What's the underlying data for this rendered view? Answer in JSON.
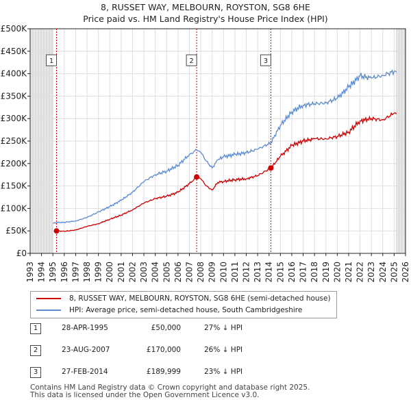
{
  "title_line1": "8, RUSSET WAY, MELBOURN, ROYSTON, SG8 6HE",
  "title_line2": "Price paid vs. HM Land Registry's House Price Index (HPI)",
  "legend": {
    "property_label": "8, RUSSET WAY, MELBOURN, ROYSTON, SG8 6HE (semi-detached house)",
    "hpi_label": "HPI: Average price, semi-detached house, South Cambridgeshire"
  },
  "colors": {
    "property": "#cc0000",
    "hpi": "#5b8bd0",
    "marker_line": "#cc0000",
    "axis": "#222222",
    "grid": "#dddddd",
    "shade": "#e6e6e6"
  },
  "sales": [
    {
      "num": "1",
      "date": "28-APR-1995",
      "price": "£50,000",
      "hpi_diff": "27% ↓ HPI"
    },
    {
      "num": "2",
      "date": "23-AUG-2007",
      "price": "£170,000",
      "hpi_diff": "26% ↓ HPI"
    },
    {
      "num": "3",
      "date": "27-FEB-2014",
      "price": "£189,999",
      "hpi_diff": "23% ↓ HPI"
    }
  ],
  "footer_line1": "Contains HM Land Registry data © Crown copyright and database right 2025.",
  "footer_line2": "This data is licensed under the Open Government Licence v3.0.",
  "chart_data": {
    "type": "line",
    "title": "8, RUSSET WAY, MELBOURN, ROYSTON, SG8 6HE — Price paid vs. HM Land Registry's House Price Index (HPI)",
    "xlabel": "",
    "ylabel": "",
    "xlim": [
      1993,
      2026
    ],
    "ylim": [
      0,
      500000
    ],
    "x_ticks": [
      1993,
      1994,
      1995,
      1996,
      1997,
      1998,
      1999,
      2000,
      2001,
      2002,
      2003,
      2004,
      2005,
      2006,
      2007,
      2008,
      2009,
      2010,
      2011,
      2012,
      2013,
      2014,
      2015,
      2016,
      2017,
      2018,
      2019,
      2020,
      2021,
      2022,
      2023,
      2024,
      2025,
      2026
    ],
    "y_ticks": [
      {
        "value": 0,
        "label": "£0"
      },
      {
        "value": 50000,
        "label": "£50K"
      },
      {
        "value": 100000,
        "label": "£100K"
      },
      {
        "value": 150000,
        "label": "£150K"
      },
      {
        "value": 200000,
        "label": "£200K"
      },
      {
        "value": 250000,
        "label": "£250K"
      },
      {
        "value": 300000,
        "label": "£300K"
      },
      {
        "value": 350000,
        "label": "£350K"
      },
      {
        "value": 400000,
        "label": "£400K"
      },
      {
        "value": 450000,
        "label": "£450K"
      },
      {
        "value": 500000,
        "label": "£500K"
      }
    ],
    "grid": true,
    "shaded_ranges": [
      [
        1993,
        1995.0
      ],
      [
        2025.2,
        2026
      ]
    ],
    "series": [
      {
        "name": "8, RUSSET WAY, MELBOURN, ROYSTON, SG8 6HE (semi-detached house)",
        "x": [
          1995.32,
          1996,
          1997,
          1998,
          1999,
          2000,
          2001,
          2002,
          2003,
          2004,
          2005,
          2006,
          2007,
          2007.64,
          2008,
          2008.5,
          2009,
          2009.5,
          2010,
          2011,
          2012,
          2013,
          2014.16,
          2015,
          2016,
          2017,
          2018,
          2019,
          2020,
          2021,
          2022,
          2023,
          2024,
          2025,
          2025.2
        ],
        "values": [
          50000,
          49000,
          52000,
          60000,
          66000,
          76000,
          85000,
          97000,
          112000,
          122000,
          127000,
          136000,
          155000,
          170000,
          166000,
          150000,
          141000,
          158000,
          160000,
          164000,
          166000,
          173000,
          189999,
          216000,
          240000,
          250000,
          255000,
          255000,
          260000,
          270000,
          295000,
          300000,
          297000,
          312000,
          310000
        ]
      },
      {
        "name": "HPI: Average price, semi-detached house, South Cambridgeshire",
        "x": [
          1995.0,
          1995.32,
          1996,
          1997,
          1998,
          1999,
          2000,
          2001,
          2002,
          2003,
          2004,
          2005,
          2006,
          2007,
          2007.64,
          2008,
          2008.5,
          2009,
          2009.5,
          2010,
          2011,
          2012,
          2013,
          2014.16,
          2015,
          2016,
          2017,
          2018,
          2019,
          2020,
          2021,
          2022,
          2023,
          2024,
          2025,
          2025.2
        ],
        "values": [
          67000,
          68500,
          69000,
          72000,
          80000,
          92000,
          104000,
          118000,
          136000,
          160000,
          175000,
          183000,
          196000,
          220000,
          230000,
          225000,
          205000,
          190000,
          208000,
          215000,
          220000,
          224000,
          232000,
          246000,
          285000,
          315000,
          330000,
          333000,
          335000,
          345000,
          370000,
          395000,
          390000,
          396000,
          405000,
          403000
        ]
      }
    ],
    "sale_markers": [
      {
        "label": "1",
        "x": 1995.32,
        "value": 50000
      },
      {
        "label": "2",
        "x": 2007.64,
        "value": 170000
      },
      {
        "label": "3",
        "x": 2014.16,
        "value": 189999
      }
    ]
  }
}
